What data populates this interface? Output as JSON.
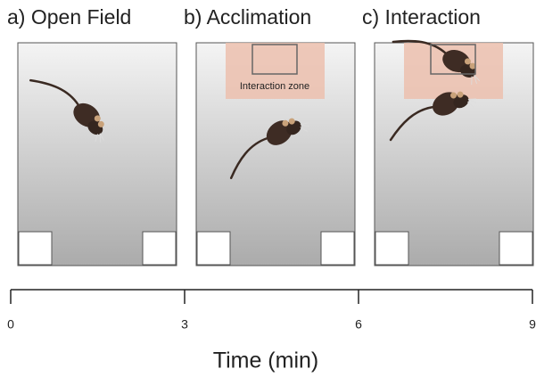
{
  "panels": [
    {
      "label": "a)  Open Field"
    },
    {
      "label": "b)  Acclimation",
      "zone_label": "Interaction zone"
    },
    {
      "label": "c)  Interaction"
    }
  ],
  "timeline": {
    "xlim": [
      0,
      9
    ],
    "ticks": [
      0,
      3,
      6,
      9
    ],
    "axis_label": "Time (min)"
  }
}
